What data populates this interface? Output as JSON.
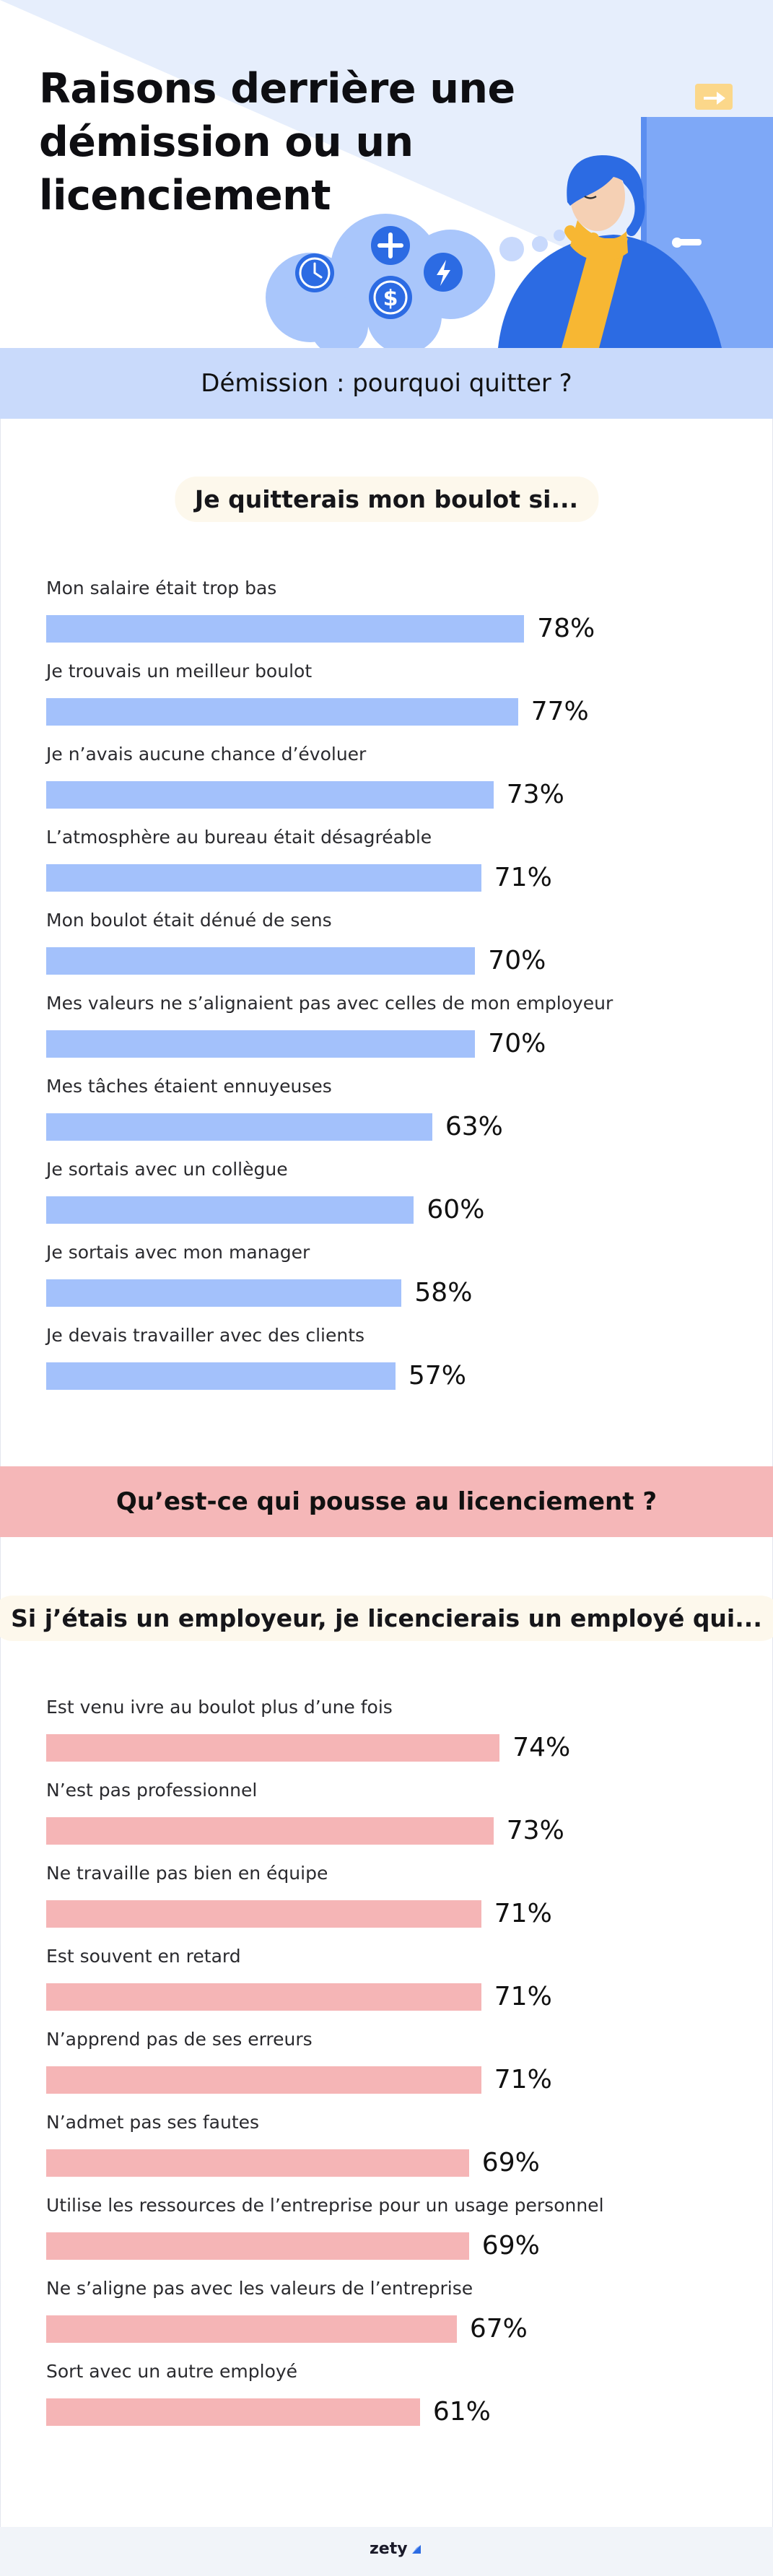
{
  "colors": {
    "hero_background": "#e6eefc",
    "blue_band": "#c9dafb",
    "blue_bar": "#a3c1fb",
    "pink_band": "#f5b7b8",
    "pink_bar": "#f5b5b6",
    "pill_background": "#fdf8ec",
    "door": "#7ea8f7",
    "character_shirt": "#2c6be3",
    "scarf": "#f7b733"
  },
  "hero": {
    "title": "Raisons derrière une démission ou un licenciement",
    "icons": [
      "clock-icon",
      "plus-icon",
      "dollar-icon",
      "lightning-icon",
      "exit-arrow-icon"
    ]
  },
  "sections": {
    "resignation_title": "Démission : pourquoi quitter ?",
    "resignation_subtitle": "Je quitterais mon boulot si...",
    "dismissal_title": "Qu’est-ce qui pousse au licenciement ?",
    "dismissal_subtitle": "Si j’étais un employeur, je licencierais un employé qui..."
  },
  "chart_data": [
    {
      "type": "bar",
      "orientation": "horizontal",
      "title": "Je quitterais mon boulot si...",
      "unit": "%",
      "xlim": [
        0,
        100
      ],
      "grid": false,
      "categories": [
        "Mon salaire était trop bas",
        "Je trouvais un meilleur boulot",
        "Je n’avais aucune chance d’évoluer",
        "L’atmosphère au bureau était désagréable",
        "Mon boulot était dénué de sens",
        "Mes valeurs ne s’alignaient pas avec celles de mon employeur",
        "Mes tâches étaient ennuyeuses",
        "Je sortais avec un collègue",
        "Je sortais avec mon manager",
        "Je devais travailler avec des clients"
      ],
      "values": [
        78,
        77,
        73,
        71,
        70,
        70,
        63,
        60,
        58,
        57
      ],
      "labels": [
        "78%",
        "77%",
        "73%",
        "71%",
        "70%",
        "70%",
        "63%",
        "60%",
        "58%",
        "57%"
      ]
    },
    {
      "type": "bar",
      "orientation": "horizontal",
      "title": "Si j’étais un employeur, je licencierais un employé qui...",
      "unit": "%",
      "xlim": [
        0,
        100
      ],
      "grid": false,
      "categories": [
        "Est venu ivre au boulot plus d’une fois",
        "N’est pas professionnel",
        "Ne travaille pas bien en équipe",
        "Est souvent en retard",
        "N’apprend pas de ses erreurs",
        "N’admet pas ses fautes",
        "Utilise les ressources de l’entreprise pour un usage personnel",
        "Ne s’aligne pas avec les valeurs de l’entreprise",
        "Sort avec un autre employé"
      ],
      "values": [
        74,
        73,
        71,
        71,
        71,
        69,
        69,
        67,
        61
      ],
      "labels": [
        "74%",
        "73%",
        "71%",
        "71%",
        "71%",
        "69%",
        "69%",
        "67%",
        "61%"
      ]
    }
  ],
  "footer": {
    "brand": "zety"
  }
}
